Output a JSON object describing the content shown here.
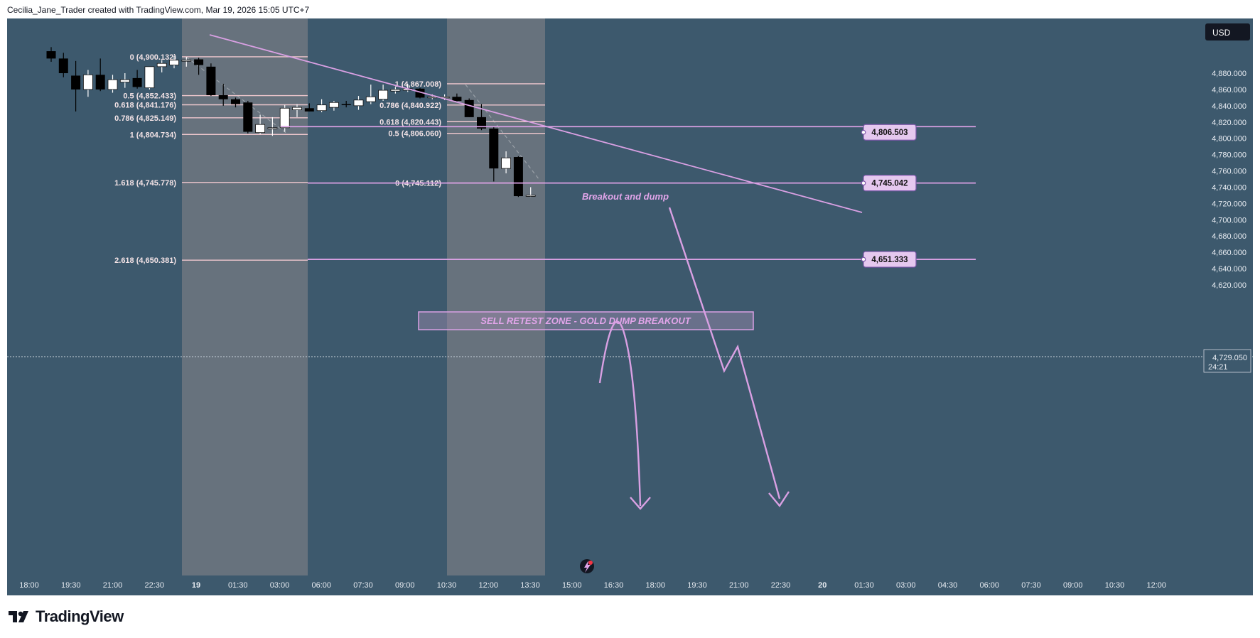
{
  "header": {
    "text": "Cecilia_Jane_Trader created with TradingView.com, Mar 19, 2026 15:05 UTC+7"
  },
  "brand": {
    "name": "TradingView"
  },
  "colors": {
    "background": "#3d596d",
    "zone": "#6b747e",
    "fib_line": "#f0c8ce",
    "drawing": "#d9a0e3",
    "up_candle": "#ffffff",
    "down_candle": "#000000",
    "tag_bg": "#e5c8ef",
    "tag_border": "#7b56a8"
  },
  "currency": "USD",
  "last_price": {
    "value": "4,729.050",
    "countdown": "24:21"
  },
  "chart_data": {
    "type": "candlestick",
    "title": "",
    "ylim": [
      4610,
      4910
    ],
    "y_ticks": [
      "4,620.000",
      "4,640.000",
      "4,660.000",
      "4,680.000",
      "4,700.000",
      "4,720.000",
      "4,740.000",
      "4,760.000",
      "4,780.000",
      "4,800.000",
      "4,820.000",
      "4,840.000",
      "4,860.000",
      "4,880.000"
    ],
    "y_tick_values": [
      4620,
      4640,
      4660,
      4680,
      4700,
      4720,
      4740,
      4760,
      4780,
      4800,
      4820,
      4840,
      4860,
      4880
    ],
    "x_ticks": [
      "18:00",
      "19:30",
      "21:00",
      "22:30",
      "19",
      "01:30",
      "03:00",
      "06:00",
      "07:30",
      "09:00",
      "10:30",
      "12:00",
      "13:30",
      "15:00",
      "16:30",
      "18:00",
      "19:30",
      "21:00",
      "22:30",
      "20",
      "01:30",
      "03:00",
      "04:30",
      "06:00",
      "07:30",
      "09:00",
      "10:30",
      "12:00"
    ],
    "candles": [
      {
        "o": 4907,
        "h": 4912,
        "l": 4894,
        "c": 4898
      },
      {
        "o": 4898,
        "h": 4905,
        "l": 4875,
        "c": 4880
      },
      {
        "o": 4877,
        "h": 4895,
        "l": 4833,
        "c": 4860
      },
      {
        "o": 4860,
        "h": 4884,
        "l": 4851,
        "c": 4878
      },
      {
        "o": 4878,
        "h": 4898,
        "l": 4858,
        "c": 4860
      },
      {
        "o": 4860,
        "h": 4878,
        "l": 4856,
        "c": 4872
      },
      {
        "o": 4869,
        "h": 4880,
        "l": 4862,
        "c": 4872
      },
      {
        "o": 4874,
        "h": 4884,
        "l": 4861,
        "c": 4863
      },
      {
        "o": 4862,
        "h": 4888,
        "l": 4860,
        "c": 4888
      },
      {
        "o": 4888,
        "h": 4896,
        "l": 4881,
        "c": 4892
      },
      {
        "o": 4890,
        "h": 4901,
        "l": 4886,
        "c": 4896
      },
      {
        "o": 4895,
        "h": 4900,
        "l": 4888,
        "c": 4896
      },
      {
        "o": 4897,
        "h": 4899,
        "l": 4878,
        "c": 4890
      },
      {
        "o": 4888,
        "h": 4892,
        "l": 4852,
        "c": 4853
      },
      {
        "o": 4853,
        "h": 4867,
        "l": 4840,
        "c": 4848
      },
      {
        "o": 4848,
        "h": 4850,
        "l": 4838,
        "c": 4842
      },
      {
        "o": 4844,
        "h": 4846,
        "l": 4806,
        "c": 4808
      },
      {
        "o": 4807,
        "h": 4829,
        "l": 4805,
        "c": 4817
      },
      {
        "o": 4813,
        "h": 4826,
        "l": 4803,
        "c": 4813
      },
      {
        "o": 4813,
        "h": 4841,
        "l": 4808,
        "c": 4837
      },
      {
        "o": 4835,
        "h": 4842,
        "l": 4826,
        "c": 4838
      },
      {
        "o": 4837,
        "h": 4843,
        "l": 4833,
        "c": 4833
      },
      {
        "o": 4834,
        "h": 4848,
        "l": 4832,
        "c": 4841
      },
      {
        "o": 4838,
        "h": 4846,
        "l": 4834,
        "c": 4844
      },
      {
        "o": 4842,
        "h": 4846,
        "l": 4838,
        "c": 4841
      },
      {
        "o": 4840,
        "h": 4852,
        "l": 4835,
        "c": 4847
      },
      {
        "o": 4845,
        "h": 4866,
        "l": 4842,
        "c": 4851
      },
      {
        "o": 4848,
        "h": 4866,
        "l": 4846,
        "c": 4859
      },
      {
        "o": 4858,
        "h": 4863,
        "l": 4855,
        "c": 4860
      },
      {
        "o": 4859,
        "h": 4867,
        "l": 4857,
        "c": 4861
      },
      {
        "o": 4861,
        "h": 4862,
        "l": 4849,
        "c": 4850
      },
      {
        "o": 4851,
        "h": 4854,
        "l": 4848,
        "c": 4851
      },
      {
        "o": 4850,
        "h": 4854,
        "l": 4847,
        "c": 4851
      },
      {
        "o": 4851,
        "h": 4855,
        "l": 4845,
        "c": 4846
      },
      {
        "o": 4847,
        "h": 4849,
        "l": 4826,
        "c": 4826
      },
      {
        "o": 4826,
        "h": 4842,
        "l": 4810,
        "c": 4812
      },
      {
        "o": 4812,
        "h": 4814,
        "l": 4747,
        "c": 4763
      },
      {
        "o": 4763,
        "h": 4784,
        "l": 4757,
        "c": 4776
      },
      {
        "o": 4777,
        "h": 4778,
        "l": 4728,
        "c": 4729
      },
      {
        "o": 4729,
        "h": 4740,
        "l": 4728,
        "c": 4730
      }
    ],
    "fib_left": [
      {
        "label": "0 (4,900.132)",
        "value": 4900.132
      },
      {
        "label": "0.5 (4,852.433)",
        "value": 4852.433
      },
      {
        "label": "0.618 (4,841.176)",
        "value": 4841.176
      },
      {
        "label": "0.786 (4,825.149)",
        "value": 4825.149
      },
      {
        "label": "1 (4,804.734)",
        "value": 4804.734
      },
      {
        "label": "1.618 (4,745.778)",
        "value": 4745.778
      },
      {
        "label": "2.618 (4,650.381)",
        "value": 4650.381
      }
    ],
    "fib_right": [
      {
        "label": "1 (4,867.008)",
        "value": 4867.008
      },
      {
        "label": "0.786 (4,840.922)",
        "value": 4840.922
      },
      {
        "label": "0.618 (4,820.443)",
        "value": 4820.443
      },
      {
        "label": "0.5 (4,806.060)",
        "value": 4806.06
      },
      {
        "label": "0 (4,745.112)",
        "value": 4745.112
      }
    ],
    "horizontal_levels": [
      {
        "label": "4,806.503",
        "value": 4806.503
      },
      {
        "label": "4,745.042",
        "value": 4745.042
      },
      {
        "label": "4,651.333",
        "value": 4651.333
      }
    ],
    "annotations": {
      "breakout": "Breakout and dump",
      "zone": "SELL RETEST ZONE - GOLD DUMP BREAKOUT"
    }
  }
}
